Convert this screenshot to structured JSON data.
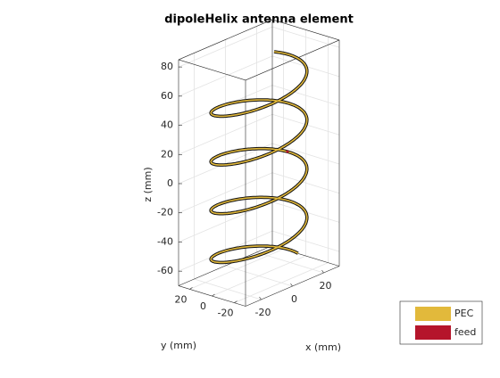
{
  "chart_data": {
    "type": "helix3d",
    "title": "dipoleHelix antenna element",
    "xlabel": "x (mm)",
    "ylabel": "y (mm)",
    "zlabel": "z (mm)",
    "xlim": [
      -30,
      30
    ],
    "ylim": [
      -30,
      30
    ],
    "zlim": [
      -70,
      85
    ],
    "xticks": [
      -20,
      0,
      20
    ],
    "yticks": [
      -20,
      0,
      20
    ],
    "zticks": [
      -60,
      -40,
      -20,
      0,
      20,
      40,
      60,
      80
    ],
    "grid": true,
    "helix": {
      "radius": 25,
      "turns": 4.1,
      "zstart": -66,
      "zend": 71
    },
    "series": [
      {
        "name": "PEC",
        "color": "#e2b93b"
      },
      {
        "name": "feed",
        "color": "#b5152b"
      }
    ],
    "legend": "lower right"
  }
}
